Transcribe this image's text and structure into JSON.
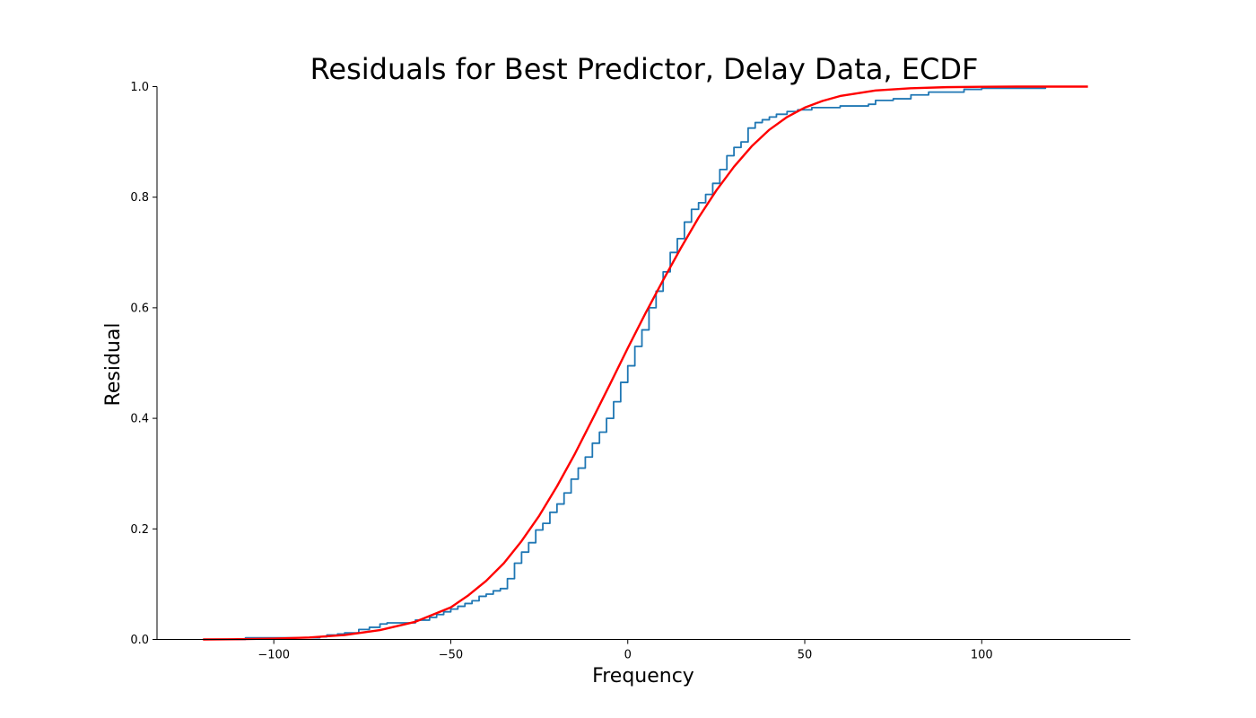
{
  "chart_data": {
    "type": "line",
    "title": "Residuals for Best Predictor, Delay Data, ECDF",
    "xlabel": "Frequency",
    "ylabel": "Residual",
    "xlim": [
      -133,
      142
    ],
    "ylim": [
      0.0,
      1.0
    ],
    "xticks": [
      -100,
      -50,
      0,
      50,
      100
    ],
    "xtick_labels": [
      "−100",
      "−50",
      "0",
      "50",
      "100"
    ],
    "yticks": [
      0.0,
      0.2,
      0.4,
      0.6,
      0.8,
      1.0
    ],
    "ytick_labels": [
      "0.0",
      "0.2",
      "0.4",
      "0.6",
      "0.8",
      "1.0"
    ],
    "grid": false,
    "legend": "none",
    "series": [
      {
        "kind": "ecdf-step",
        "color": "#1f77b4",
        "x": [
          -120,
          -108,
          -87,
          -85,
          -82,
          -80,
          -76,
          -73,
          -70,
          -68,
          -60,
          -56,
          -54,
          -52,
          -50,
          -48,
          -46,
          -44,
          -42,
          -40,
          -38,
          -36,
          -34,
          -32,
          -30,
          -28,
          -26,
          -24,
          -22,
          -20,
          -18,
          -16,
          -14,
          -12,
          -10,
          -8,
          -6,
          -4,
          -2,
          0,
          2,
          4,
          6,
          8,
          10,
          12,
          14,
          16,
          18,
          20,
          22,
          24,
          26,
          28,
          30,
          32,
          34,
          36,
          38,
          40,
          42,
          45,
          48,
          52,
          60,
          68,
          70,
          75,
          80,
          85,
          95,
          100,
          118
        ],
        "y": [
          0.0,
          0.003,
          0.005,
          0.008,
          0.01,
          0.012,
          0.018,
          0.022,
          0.028,
          0.03,
          0.035,
          0.04,
          0.045,
          0.05,
          0.055,
          0.06,
          0.065,
          0.07,
          0.078,
          0.082,
          0.088,
          0.092,
          0.11,
          0.138,
          0.158,
          0.175,
          0.198,
          0.21,
          0.23,
          0.245,
          0.265,
          0.29,
          0.31,
          0.33,
          0.355,
          0.375,
          0.4,
          0.43,
          0.465,
          0.495,
          0.53,
          0.56,
          0.6,
          0.63,
          0.665,
          0.7,
          0.725,
          0.755,
          0.778,
          0.79,
          0.805,
          0.825,
          0.85,
          0.875,
          0.89,
          0.9,
          0.925,
          0.935,
          0.94,
          0.945,
          0.95,
          0.955,
          0.958,
          0.962,
          0.965,
          0.968,
          0.975,
          0.978,
          0.985,
          0.99,
          0.995,
          0.997,
          1.0
        ]
      },
      {
        "kind": "line",
        "color": "#ff0000",
        "x": [
          -120,
          -110,
          -100,
          -90,
          -80,
          -70,
          -60,
          -50,
          -45,
          -40,
          -35,
          -30,
          -25,
          -20,
          -15,
          -10,
          -5,
          0,
          5,
          10,
          15,
          20,
          25,
          30,
          35,
          40,
          45,
          50,
          55,
          60,
          70,
          80,
          90,
          100,
          110,
          120,
          130
        ],
        "y": [
          0.0,
          0.0005,
          0.0015,
          0.0035,
          0.008,
          0.017,
          0.032,
          0.058,
          0.08,
          0.106,
          0.138,
          0.178,
          0.224,
          0.277,
          0.335,
          0.398,
          0.462,
          0.527,
          0.59,
          0.65,
          0.708,
          0.763,
          0.812,
          0.855,
          0.892,
          0.922,
          0.945,
          0.962,
          0.974,
          0.983,
          0.993,
          0.997,
          0.999,
          0.9997,
          1.0,
          1.0,
          1.0
        ]
      }
    ]
  }
}
